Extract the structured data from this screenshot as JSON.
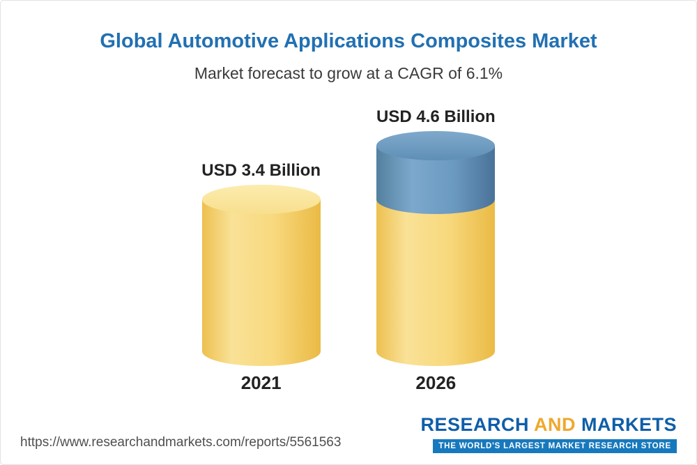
{
  "page": {
    "footer_url": "https://www.researchandmarkets.com/reports/5561563",
    "logo": {
      "research": "RESEARCH",
      "and": "AND",
      "markets": "MARKETS",
      "tagline": "THE WORLD'S LARGEST MARKET RESEARCH STORE"
    }
  },
  "chart_data": {
    "type": "bar",
    "bar_style": "cylinder",
    "title": "Global Automotive Applications Composites Market",
    "subtitle": "Market forecast to grow at a CAGR of 6.1%",
    "cagr_percent": 6.1,
    "unit": "USD Billion",
    "categories": [
      "2021",
      "2026"
    ],
    "values": [
      3.4,
      4.6
    ],
    "value_labels": [
      "USD 3.4 Billion",
      "USD 4.6 Billion"
    ],
    "legend": "none",
    "grid": false,
    "colors": {
      "title_text": "#2170b2",
      "base_segment": "#f8d97e",
      "growth_segment": "#6b9ac0",
      "label_text": "#222222",
      "logo_blue": "#0f5ea8",
      "logo_orange": "#efa82d",
      "tagline_bar": "#1779bd"
    }
  }
}
